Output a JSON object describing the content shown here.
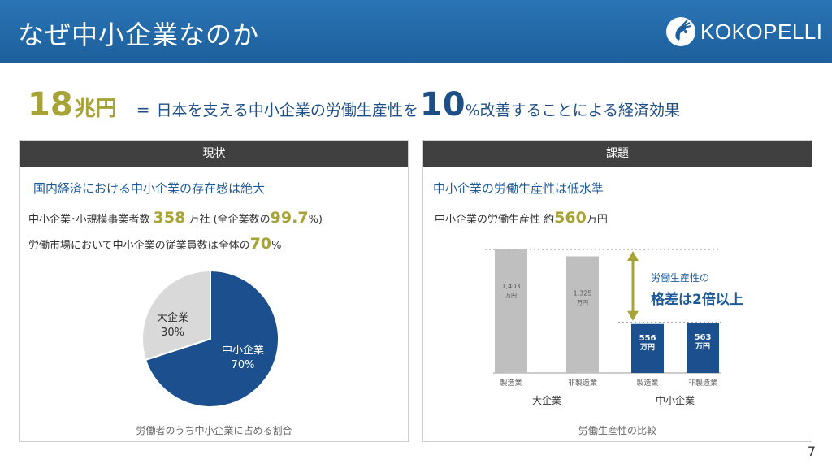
{
  "header": {
    "title": "なぜ中小企業なのか",
    "brand": "KOKOPELLI"
  },
  "headline": {
    "number": "18",
    "unit": "兆円",
    "equals": "=",
    "text_before": "日本を支える中小企業の労働生産性を",
    "percent_number": "10",
    "text_after": "%改善することによる経済効果"
  },
  "left_panel": {
    "title": "現状",
    "subheading": "国内経済における中小企業の存在感は絶大",
    "stat1": {
      "prefix": "中小企業･小規模事業者数 ",
      "value": "358",
      "suffix": "万社 (全企業数の",
      "percent": "99.7",
      "end": "%)"
    },
    "stat2": {
      "prefix": "労働市場において中小企業の従業員数は全体の",
      "percent": "70",
      "end": "%"
    },
    "caption": "労働者のうち中小企業に占める割合"
  },
  "right_panel": {
    "title": "課題",
    "subheading": "中小企業の労働生産性は低水準",
    "stat": {
      "prefix": "中小企業の労働生産性  約",
      "value": "560",
      "suffix": "万円"
    },
    "gap_small": "労働生産性の",
    "gap_bold": "格差は2倍以上",
    "caption": "労働生産性の比較"
  },
  "chart_data": [
    {
      "type": "pie",
      "slices": [
        {
          "label": "中小企業",
          "value": 70,
          "value_label": "70%",
          "color": "#1b4f8e"
        },
        {
          "label": "大企業",
          "value": 30,
          "value_label": "30%",
          "color": "#d9d9d9"
        }
      ]
    },
    {
      "type": "bar",
      "groups": [
        "大企業",
        "中小企業"
      ],
      "categories": [
        "製造業",
        "非製造業",
        "製造業",
        "非製造業"
      ],
      "values": [
        1403,
        1325,
        556,
        563
      ],
      "value_labels": [
        [
          "1,403",
          "万円"
        ],
        [
          "1,325",
          "万円"
        ],
        [
          "556",
          "万円"
        ],
        [
          "563",
          "万円"
        ]
      ],
      "colors": [
        "#bfbfbf",
        "#bfbfbf",
        "#1b4f8e",
        "#1b4f8e"
      ]
    }
  ],
  "page_number": "7",
  "colors": {
    "header_blue": "#1d5f9c",
    "gold": "#a7a337",
    "navy": "#1d4f86",
    "pie_blue": "#1b4f8e",
    "pie_grey": "#d9d9d9",
    "arrow": "#a7a337"
  }
}
